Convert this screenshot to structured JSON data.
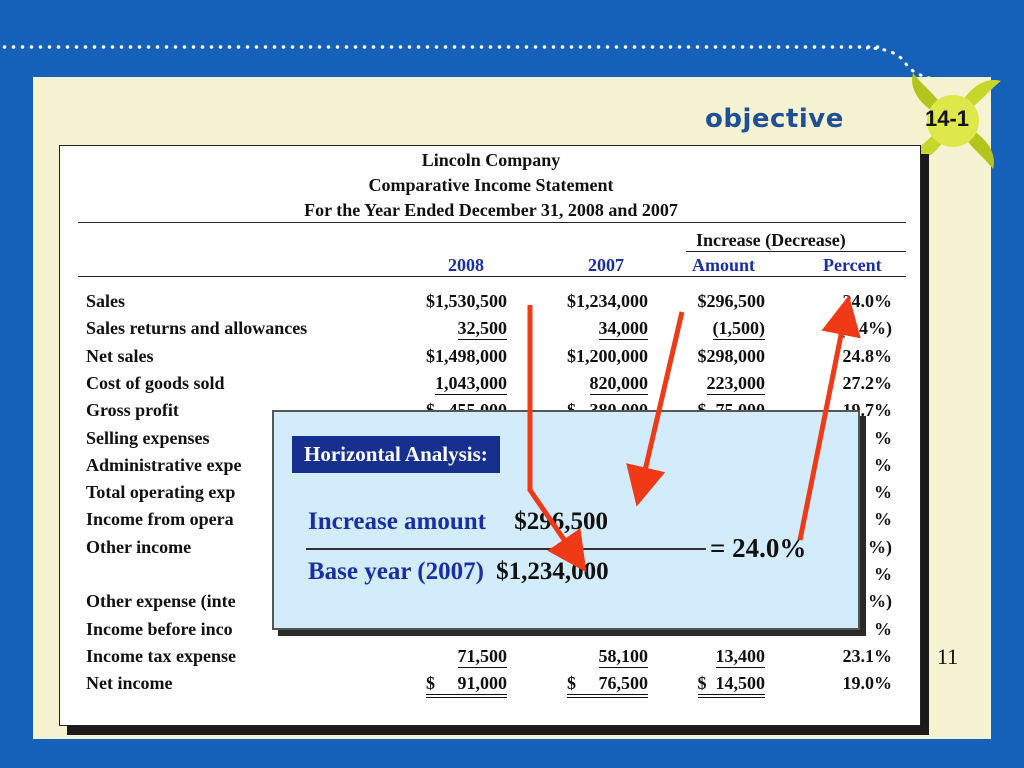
{
  "slide": {
    "objective_label": "objective",
    "objective_number": "14-1",
    "page_number": "11"
  },
  "statement": {
    "company": "Lincoln Company",
    "title": "Comparative Income Statement",
    "period": "For the Year Ended December 31, 2008 and 2007",
    "group_header": "Increase (Decrease)",
    "columns": [
      "2008",
      "2007",
      "Amount",
      "Percent"
    ],
    "rows": [
      {
        "label": "Sales",
        "y2008": "$1,530,500",
        "y2007": "$1,234,000",
        "amount": "$296,500",
        "percent": "24.0%"
      },
      {
        "label": "Sales returns and allowances",
        "y2008": "32,500",
        "y2007": "34,000",
        "amount": "(1,500)",
        "percent": "(4.4%)"
      },
      {
        "label": "Net sales",
        "y2008": "$1,498,000",
        "y2007": "$1,200,000",
        "amount": "$298,000",
        "percent": "24.8%"
      },
      {
        "label": "Cost of goods sold",
        "y2008": "1,043,000",
        "y2007": "820,000",
        "amount": "223,000",
        "percent": "27.2%"
      },
      {
        "label": "Gross profit",
        "y2008": "$   455,000",
        "y2007": "$   380,000",
        "amount": "$  75,000",
        "percent": "19.7%"
      },
      {
        "label": "Selling expenses",
        "y2008": "",
        "y2007": "",
        "amount": "",
        "percent": "%"
      },
      {
        "label": "Administrative expe",
        "y2008": "",
        "y2007": "",
        "amount": "",
        "percent": "%"
      },
      {
        "label": "Total operating exp",
        "y2008": "",
        "y2007": "",
        "amount": "",
        "percent": "%"
      },
      {
        "label": "Income from opera",
        "y2008": "",
        "y2007": "",
        "amount": "",
        "percent": "%"
      },
      {
        "label": "Other income",
        "y2008": "",
        "y2007": "",
        "amount": "",
        "percent": "%)"
      },
      {
        "label": "",
        "y2008": "",
        "y2007": "",
        "amount": "",
        "percent": "%"
      },
      {
        "label": "Other expense (inte",
        "y2008": "",
        "y2007": "",
        "amount": "",
        "percent": "%)"
      },
      {
        "label": "Income before inco",
        "y2008": "",
        "y2007": "",
        "amount": "",
        "percent": "%"
      },
      {
        "label": "Income tax expense",
        "y2008": "71,500",
        "y2007": "58,100",
        "amount": "13,400",
        "percent": "23.1%"
      },
      {
        "label": "Net income",
        "y2008": "$     91,000",
        "y2007": "$     76,500",
        "amount": "$  14,500",
        "percent": "19.0%"
      }
    ]
  },
  "callout": {
    "title": "Horizontal Analysis:",
    "numerator_label": "Increase amount",
    "numerator_value": "$296,500",
    "denominator_label": "Base year (2007)",
    "denominator_value": "$1,234,000",
    "result": "= 24.0%"
  },
  "colors": {
    "background": "#1560b8",
    "panel": "#f6f3d2",
    "accent_blue": "#1a2fa6",
    "arrow_red": "#f03a17",
    "callout_fill": "#d2ecfb"
  }
}
